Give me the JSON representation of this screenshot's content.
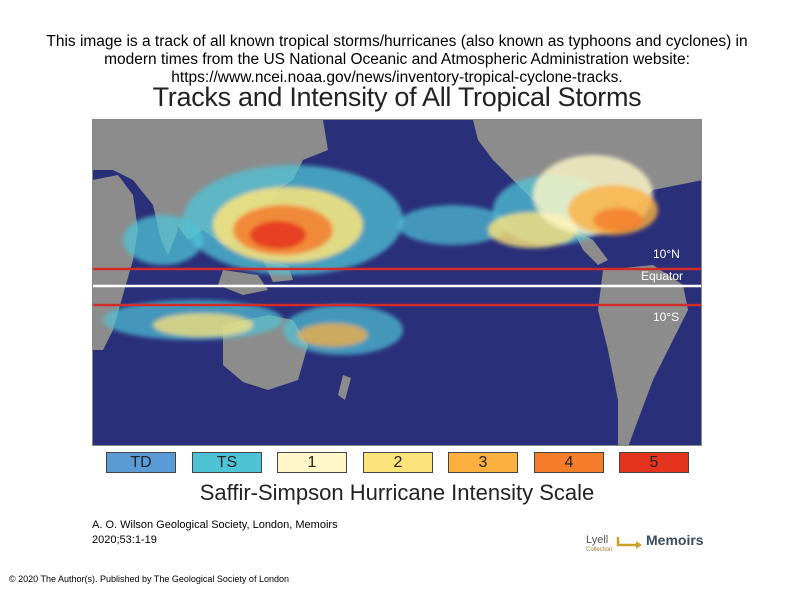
{
  "caption": "This image is a track of all known tropical storms/hurricanes (also known as typhoons and cyclones) in modern times from the US National Oceanic and Atmospheric Administration website: https://www.ncei.noaa.gov/news/inventory-tropical-cyclone-tracks.",
  "map": {
    "title": "Tracks and Intensity of All Tropical Storms",
    "lines": {
      "north": "10°N",
      "equator": "Equator",
      "south": "10°S"
    },
    "colors": {
      "ocean": "#2a2f7a",
      "land": "#8c8c8c",
      "line_red": "#d32a2a",
      "line_white": "#ffffff"
    }
  },
  "legend": {
    "title": "Saffir-Simpson Hurricane Intensity Scale",
    "items": [
      {
        "label": "TD",
        "color": "#5b9bd5"
      },
      {
        "label": "TS",
        "color": "#4fc3d6"
      },
      {
        "label": "1",
        "color": "#fff7c8"
      },
      {
        "label": "2",
        "color": "#fde47a"
      },
      {
        "label": "3",
        "color": "#fbb040"
      },
      {
        "label": "4",
        "color": "#f47c2a"
      },
      {
        "label": "5",
        "color": "#e5341d"
      }
    ]
  },
  "citation": {
    "line1": "A. O. Wilson Geological Society, London, Memoirs",
    "line2": "2020;53:1-19"
  },
  "copyright": "© 2020 The Author(s). Published by The Geological Society of London",
  "logo": {
    "lyell": "Lyell",
    "lyell_sub": "Collection",
    "memoirs": "Memoirs"
  }
}
